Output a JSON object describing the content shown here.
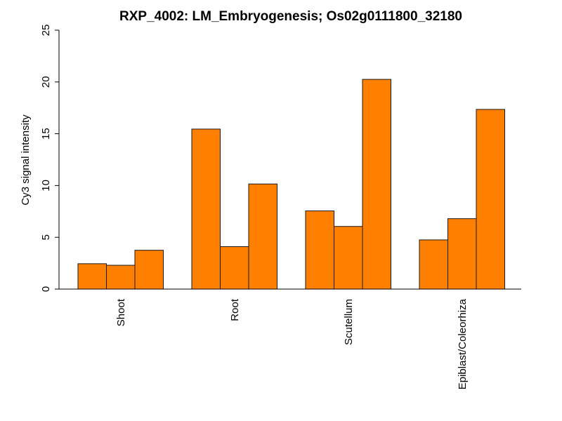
{
  "chart_data": {
    "type": "bar",
    "title": "RXP_4002: LM_Embryogenesis; Os02g0111800_32180",
    "xlabel": "",
    "ylabel": "Cy3 signal intensity",
    "ylim": [
      0,
      25
    ],
    "yticks": [
      "0",
      "5",
      "10",
      "15",
      "20",
      "25"
    ],
    "grid": false,
    "legend": "none",
    "categories": [
      "Shoot",
      "Root",
      "Scutellum",
      "Epiblast/Coleorhiza"
    ],
    "series": [
      {
        "values": [
          2.45,
          15.45,
          7.55,
          4.75
        ]
      },
      {
        "values": [
          2.3,
          4.1,
          6.05,
          6.8
        ]
      },
      {
        "values": [
          3.75,
          10.15,
          20.25,
          17.35
        ]
      }
    ],
    "bar_color": "#ff8000",
    "bar_edge_color": "#1a1a1a"
  }
}
